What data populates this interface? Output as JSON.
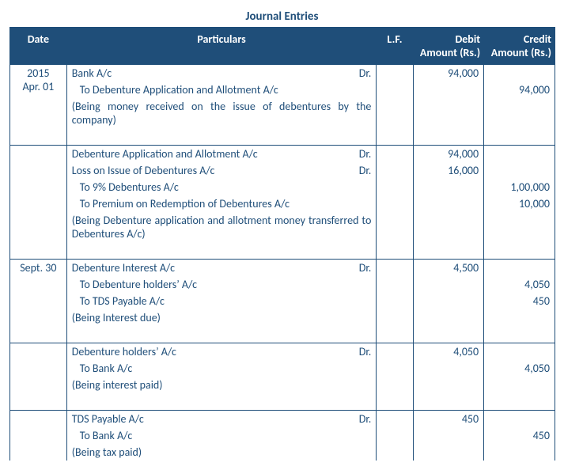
{
  "title": "Journal Entries",
  "headers": {
    "date": "Date",
    "particulars": "Particulars",
    "lf": "L.F.",
    "debit": "Debit Amount (Rs.)",
    "credit": "Credit Amount (Rs.)"
  },
  "entries": [
    {
      "date_year": "2015",
      "date_md": "Apr. 01",
      "lines": [
        {
          "text": "Bank A/c",
          "dr": "Dr.",
          "indent": false,
          "debit": "94,000",
          "credit": ""
        },
        {
          "text": "To Debenture Application and Allotment A/c",
          "dr": "",
          "indent": true,
          "debit": "",
          "credit": "94,000"
        }
      ],
      "narration": "(Being money received on the issue of debentures by the company)"
    },
    {
      "date_year": "",
      "date_md": "",
      "lines": [
        {
          "text": "Debenture Application and Allotment A/c",
          "dr": "Dr.",
          "indent": false,
          "debit": "94,000",
          "credit": ""
        },
        {
          "text": "Loss on Issue of Debentures A/c",
          "dr": "Dr.",
          "indent": false,
          "debit": "16,000",
          "credit": ""
        },
        {
          "text": "To 9% Debentures A/c",
          "dr": "",
          "indent": true,
          "debit": "",
          "credit": "1,00,000"
        },
        {
          "text": "To Premium on Redemption of Debentures A/c",
          "dr": "",
          "indent": true,
          "debit": "",
          "credit": "10,000"
        }
      ],
      "narration": "(Being Debenture application and allotment money transferred to Debentures A/c)"
    },
    {
      "date_year": "",
      "date_md": "Sept. 30",
      "lines": [
        {
          "text": "Debenture Interest A/c",
          "dr": "Dr.",
          "indent": false,
          "debit": "4,500",
          "credit": ""
        },
        {
          "text": "To Debenture holders’ A/c",
          "dr": "",
          "indent": true,
          "debit": "",
          "credit": "4,050"
        },
        {
          "text": "To TDS Payable A/c",
          "dr": "",
          "indent": true,
          "debit": "",
          "credit": "450"
        }
      ],
      "narration": "(Being Interest due)"
    },
    {
      "date_year": "",
      "date_md": "",
      "lines": [
        {
          "text": "Debenture holders’ A/c",
          "dr": "Dr.",
          "indent": false,
          "debit": "4,050",
          "credit": ""
        },
        {
          "text": "To Bank A/c",
          "dr": "",
          "indent": true,
          "debit": "",
          "credit": "4,050"
        }
      ],
      "narration": "(Being interest paid)"
    },
    {
      "date_year": "",
      "date_md": "",
      "lines": [
        {
          "text": "TDS Payable A/c",
          "dr": "Dr.",
          "indent": false,
          "debit": "450",
          "credit": ""
        },
        {
          "text": "To Bank A/c",
          "dr": "",
          "indent": true,
          "debit": "",
          "credit": "450"
        }
      ],
      "narration": "(Being tax paid)"
    }
  ],
  "style": {
    "header_bg": "#1f4e79",
    "header_fg": "#ffffff",
    "border_color": "#1f4e79",
    "text_color": "#1f4e79",
    "font_family": "Calibri",
    "font_size_pt": 11
  }
}
